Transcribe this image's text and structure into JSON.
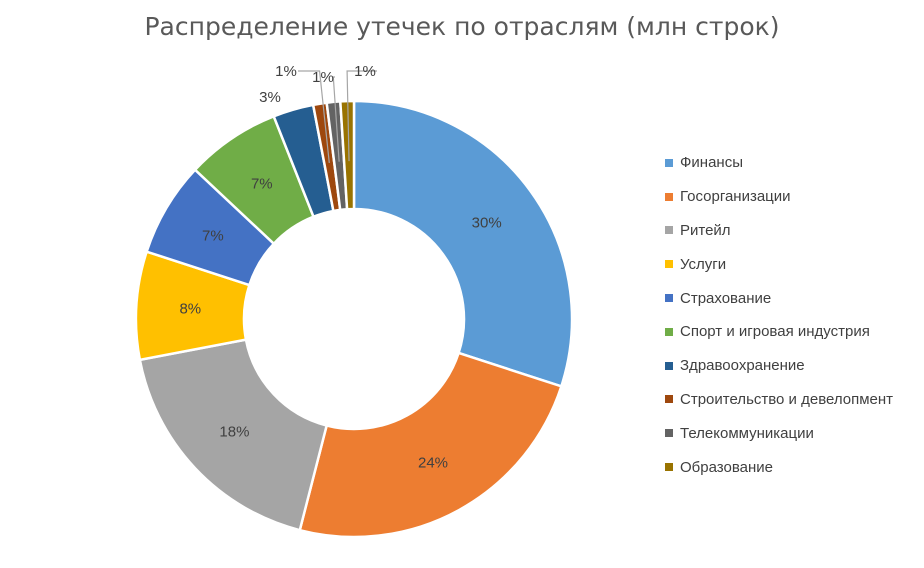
{
  "chart_data": {
    "type": "pie",
    "variant": "donut",
    "title": "Распределение утечек по отраслям (млн строк)",
    "categories": [
      "Финансы",
      "Госорганизации",
      "Ритейл",
      "Услуги",
      "Страхование",
      "Спорт и игровая индустрия",
      "Здравоохранение",
      "Строительство и девелопмент",
      "Телекоммуникации",
      "Образование"
    ],
    "values": [
      30,
      24,
      18,
      8,
      7,
      7,
      3,
      1,
      1,
      1
    ],
    "labels": [
      "30%",
      "24%",
      "18%",
      "8%",
      "7%",
      "7%",
      "3%",
      "1%",
      "1%",
      "1%"
    ],
    "colors": [
      "#5B9BD5",
      "#ED7D31",
      "#A5A5A5",
      "#FFC000",
      "#4472C4",
      "#70AD47",
      "#255E91",
      "#9E480E",
      "#636363",
      "#997300"
    ],
    "legend_position": "right"
  }
}
